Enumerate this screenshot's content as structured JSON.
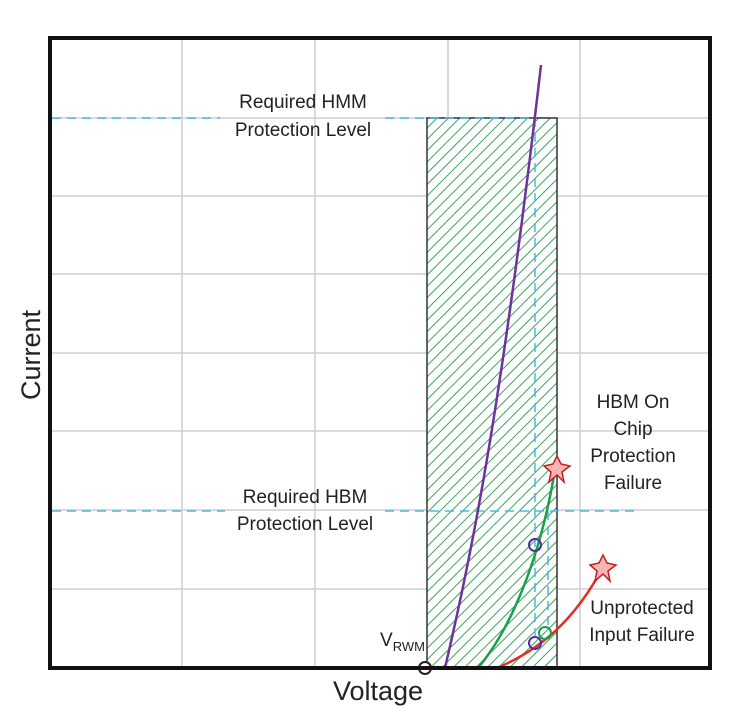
{
  "axes": {
    "y_label": "Current",
    "x_label": "Voltage"
  },
  "annotations": {
    "hmm_level": [
      "Required HMM",
      "Protection Level"
    ],
    "hbm_level": [
      "Required HBM",
      "Protection Level"
    ],
    "hbm_failure": [
      "HBM On",
      "Chip",
      "Protection",
      "Failure"
    ],
    "input_failure": [
      "Unprotected",
      "Input Failure"
    ],
    "vrwm": {
      "main": "V",
      "sub": "RWM"
    }
  }
}
